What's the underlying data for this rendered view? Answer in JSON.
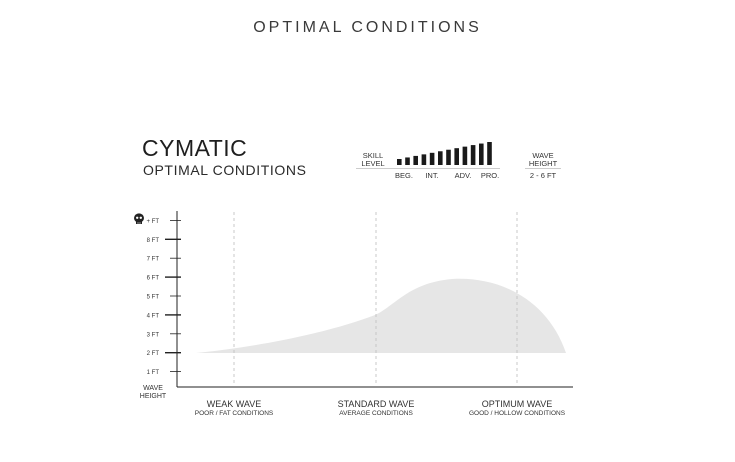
{
  "page_heading": "OPTIMAL CONDITIONS",
  "product": {
    "name": "CYMATIC",
    "subtitle": "OPTIMAL CONDITIONS"
  },
  "skill": {
    "label_line1": "SKILL",
    "label_line2": "LEVEL",
    "levels": [
      "BEG.",
      "INT.",
      "ADV.",
      "PRO."
    ],
    "bar_count": 12
  },
  "wave_height": {
    "label_line1": "WAVE",
    "label_line2": "HEIGHT",
    "value": "2 - 6 FT"
  },
  "chart_data": {
    "type": "area",
    "ylabel_line1": "WAVE",
    "ylabel_line2": "HEIGHT",
    "y_ticks": [
      "1 FT",
      "2 FT",
      "3 FT",
      "4 FT",
      "5 FT",
      "6 FT",
      "7 FT",
      "8 FT",
      "+ FT"
    ],
    "ylim": [
      0,
      9
    ],
    "x_categories": [
      {
        "main": "WEAK WAVE",
        "sub": "POOR / FAT CONDITIONS"
      },
      {
        "main": "STANDARD WAVE",
        "sub": "AVERAGE CONDITIONS"
      },
      {
        "main": "OPTIMUM WAVE",
        "sub": "GOOD / HOLLOW CONDITIONS"
      }
    ],
    "fill_color": "#e6e6e6",
    "axis_color": "#222222",
    "gridlines": "dashed vertical at wave categories",
    "skull_icon": "skull-icon"
  }
}
